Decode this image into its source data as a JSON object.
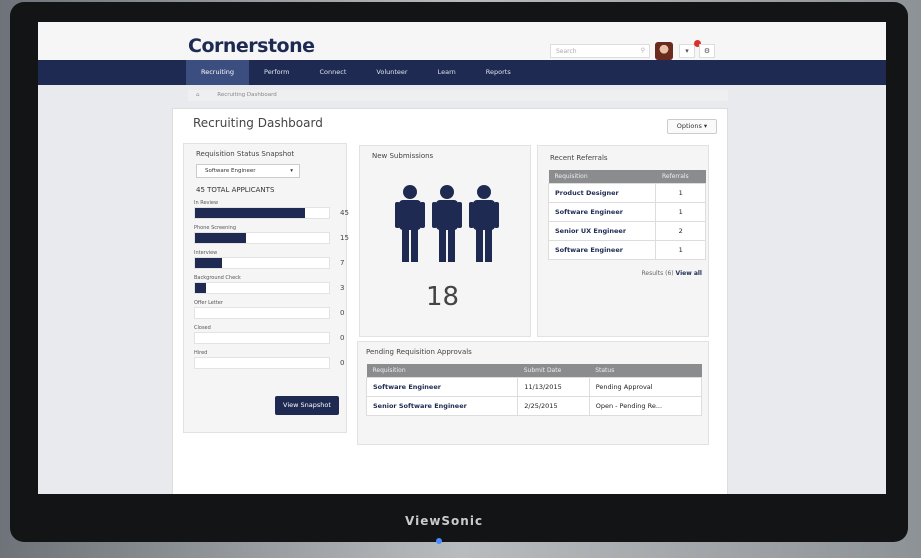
{
  "app": {
    "logo": "Cornerstone",
    "search_placeholder": "Search",
    "notification_count": "1"
  },
  "nav": [
    "Recruiting",
    "Perform",
    "Connect",
    "Volunteer",
    "Learn",
    "Reports"
  ],
  "breadcrumb": {
    "home": "⌂",
    "current": "Recruiting Dashboard"
  },
  "page": {
    "title": "Recruiting Dashboard",
    "options": "Options ▾"
  },
  "snapshot": {
    "title": "Requisition Status Snapshot",
    "selected": "Software Engineer",
    "total": "45 TOTAL APPLICANTS",
    "max": 45,
    "rows": [
      {
        "label": "In Review",
        "value": 45,
        "fill": 0.82
      },
      {
        "label": "Phone Screening",
        "value": 15,
        "fill": 0.38
      },
      {
        "label": "Interview",
        "value": 7,
        "fill": 0.2
      },
      {
        "label": "Background Check",
        "value": 3,
        "fill": 0.08
      },
      {
        "label": "Offer Letter",
        "value": 0,
        "fill": 0
      },
      {
        "label": "Closed",
        "value": 0,
        "fill": 0
      },
      {
        "label": "Hired",
        "value": 0,
        "fill": 0
      }
    ],
    "button": "View Snapshot"
  },
  "submissions": {
    "title": "New Submissions",
    "count": "18"
  },
  "referrals": {
    "title": "Recent Referrals",
    "headers": [
      "Requisition",
      "Referrals"
    ],
    "rows": [
      [
        "Product Designer",
        "1"
      ],
      [
        "Software Engineer",
        "1"
      ],
      [
        "Senior UX Engineer",
        "2"
      ],
      [
        "Software Engineer",
        "1"
      ]
    ],
    "results": "Results (6)",
    "view_all": "View all"
  },
  "approvals": {
    "title": "Pending Requisition Approvals",
    "headers": [
      "Requisition",
      "Submit Date",
      "Status"
    ],
    "rows": [
      [
        "Software Engineer",
        "11/13/2015",
        "Pending Approval"
      ],
      [
        "Senior Software Engineer",
        "2/25/2015",
        "Open - Pending Re..."
      ]
    ]
  },
  "monitor": {
    "brand": "ViewSonic"
  },
  "colors": {
    "navy": "#1f2a52",
    "active_tab": "#3c4d80",
    "badge": "#d9302c"
  }
}
